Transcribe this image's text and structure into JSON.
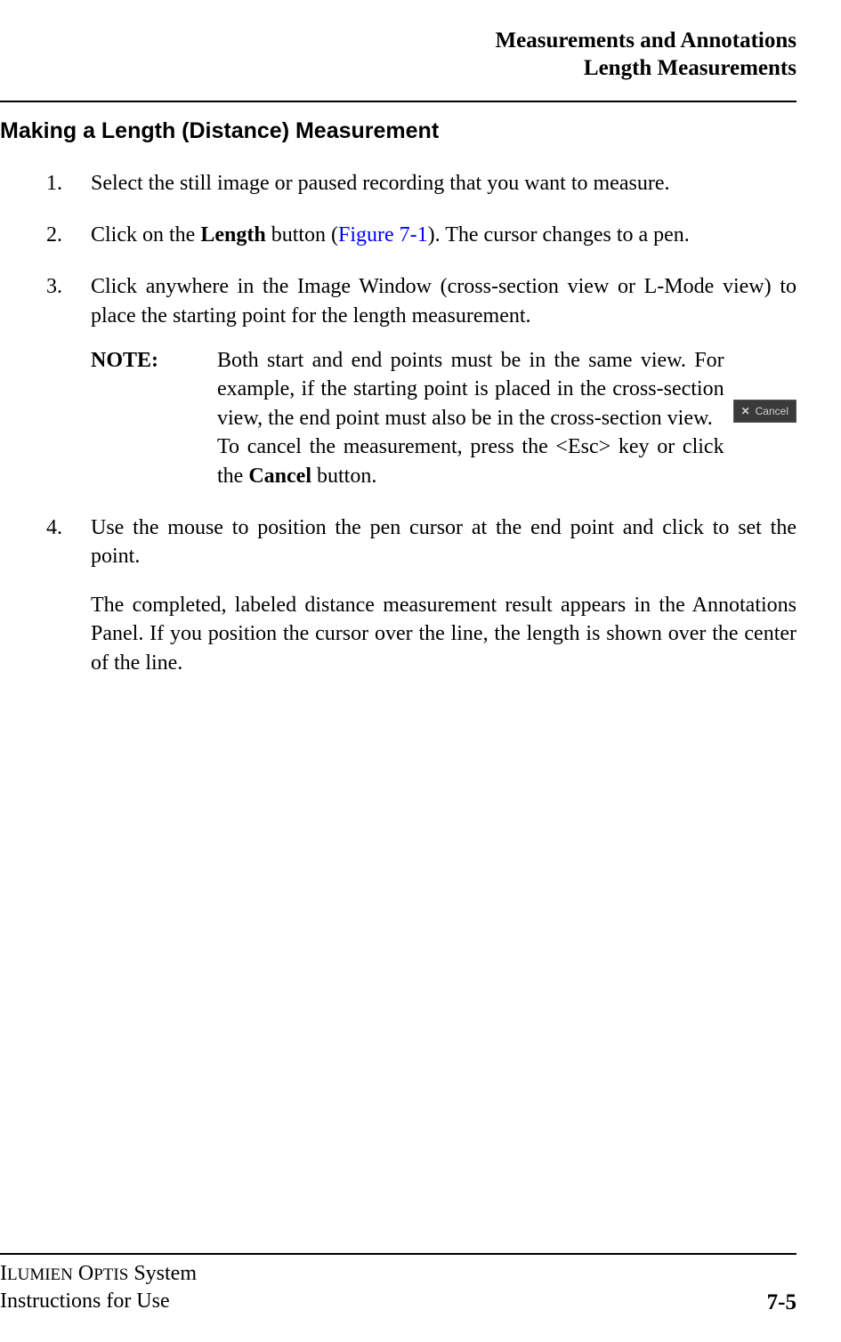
{
  "header": {
    "line1": "Measurements and Annotations",
    "line2": "Length Measurements"
  },
  "section_title": "Making a Length (Distance) Measurement",
  "steps": [
    {
      "num": "1.",
      "text": "Select the still image or paused recording that you want to measure."
    },
    {
      "num": "2.",
      "pre": "Click on the ",
      "bold": "Length",
      "mid": " button (",
      "link": "Figure 7-1",
      "post": "). The cursor changes to a pen."
    },
    {
      "num": "3.",
      "text": "Click anywhere in the Image Window (cross-section view or L-Mode view) to place the starting point for the length measurement.",
      "note_label": "NOTE:",
      "note_p1": "Both start and end points must be in the same view. For example, if the starting point is placed in the cross-section view, the end point must also be in the cross-section view.",
      "note_p2_pre": "To cancel the measurement, press the <Esc> key or click the ",
      "note_p2_bold": "Cancel",
      "note_p2_post": " button.",
      "cancel_btn_label": "Cancel",
      "cancel_btn_x": "✕"
    },
    {
      "num": "4.",
      "text": "Use the mouse to position the pen cursor at the end point and click to set the point.",
      "sub": "The completed, labeled distance measurement result appears in the Annotations Panel. If you position the cursor over the line, the length is shown over the center of the line."
    }
  ],
  "footer": {
    "product_sc1": "Ilumien",
    "product_sc2": "Optis",
    "product_rest": " System",
    "line2": "Instructions for Use",
    "page": "7-5"
  }
}
